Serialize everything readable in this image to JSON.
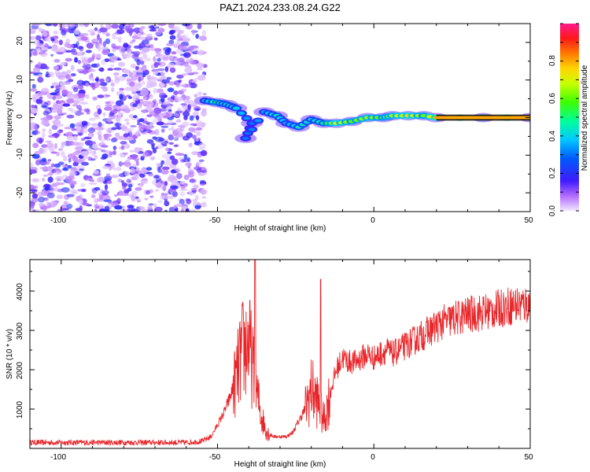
{
  "title": "PAZ1.2024.233.08.24.G22",
  "colors": {
    "snr_line": "#e8262a",
    "axis": "#000000"
  },
  "chart_data": [
    {
      "type": "heatmap",
      "title": "PAZ1.2024.233.08.24.G22",
      "xlabel": "Height of straight line (km)",
      "ylabel": "Frequency (Hz)",
      "xlim": [
        -110,
        50
      ],
      "ylim": [
        -25,
        25
      ],
      "x_ticks": [
        "-100",
        "-50",
        "0",
        "50"
      ],
      "y_ticks": [
        "-20",
        "-10",
        "0",
        "10",
        "20"
      ],
      "colorbar": {
        "label": "Normalized spectral amplitude",
        "range": [
          0,
          1
        ],
        "ticks": [
          "0.0",
          "0.2",
          "0.4",
          "0.6",
          "0.8"
        ]
      },
      "noise_region_x": [
        -110,
        -54
      ],
      "ridge": [
        {
          "x": -54,
          "y": 4.5,
          "v": 0.35
        },
        {
          "x": -50,
          "y": 4.0,
          "v": 0.55
        },
        {
          "x": -47,
          "y": 3.5,
          "v": 0.45
        },
        {
          "x": -44,
          "y": 2.5,
          "v": 0.4
        },
        {
          "x": -39,
          "y": -1.5,
          "v": 0.3
        },
        {
          "x": -41,
          "y": -5.5,
          "v": 0.3
        },
        {
          "x": -35,
          "y": 1.5,
          "v": 0.35
        },
        {
          "x": -31,
          "y": 0.5,
          "v": 0.45
        },
        {
          "x": -28,
          "y": -1.5,
          "v": 0.35
        },
        {
          "x": -24,
          "y": -2.5,
          "v": 0.45
        },
        {
          "x": -20,
          "y": -0.5,
          "v": 0.4
        },
        {
          "x": -16,
          "y": -1.5,
          "v": 0.5
        },
        {
          "x": -12,
          "y": -1.5,
          "v": 0.7
        },
        {
          "x": -7,
          "y": -1.0,
          "v": 0.6
        },
        {
          "x": -2,
          "y": 0.0,
          "v": 0.65
        },
        {
          "x": 3,
          "y": 0.0,
          "v": 0.6
        },
        {
          "x": 6,
          "y": 0.5,
          "v": 0.65
        },
        {
          "x": 11,
          "y": 0.5,
          "v": 0.75
        },
        {
          "x": 16,
          "y": 0.5,
          "v": 0.6
        },
        {
          "x": 20,
          "y": 0.0,
          "v": 0.8
        },
        {
          "x": 35,
          "y": 0.0,
          "v": 0.85
        },
        {
          "x": 50,
          "y": 0.0,
          "v": 0.85
        }
      ]
    },
    {
      "type": "line",
      "xlabel": "Height of straight line (km)",
      "ylabel": "SNR (10 * v/v)",
      "xlim": [
        -110,
        50
      ],
      "ylim": [
        0,
        4800
      ],
      "x_ticks": [
        "-100",
        "-50",
        "0",
        "50"
      ],
      "y_ticks": [
        "1000",
        "2000",
        "3000",
        "4000"
      ],
      "series": [
        {
          "x": [
            -110,
            -100,
            -90,
            -80,
            -70,
            -60,
            -55,
            -52,
            -50,
            -48,
            -46,
            -44,
            -42,
            -40,
            -38,
            -36,
            -34,
            -32,
            -30,
            -28,
            -26,
            -24,
            -22,
            -20,
            -18,
            -16,
            -14,
            -12,
            -10,
            -8,
            -6,
            -4,
            -2,
            0,
            2,
            4,
            6,
            8,
            10,
            12,
            14,
            16,
            18,
            20,
            22,
            24,
            26,
            28,
            30,
            32,
            34,
            36,
            38,
            40,
            42,
            44,
            46,
            48,
            50
          ],
          "y": [
            150,
            150,
            150,
            150,
            150,
            150,
            180,
            300,
            600,
            900,
            1300,
            1800,
            2500,
            2700,
            1700,
            800,
            400,
            300,
            300,
            300,
            400,
            700,
            1000,
            1500,
            1200,
            700,
            1400,
            2000,
            2300,
            2200,
            2200,
            2300,
            2400,
            2300,
            2400,
            2500,
            2400,
            2500,
            2600,
            2700,
            2800,
            2900,
            3000,
            3100,
            3200,
            3250,
            3300,
            3350,
            3400,
            3420,
            3450,
            3480,
            3500,
            3550,
            3600,
            3620,
            3650,
            3650,
            3650
          ]
        }
      ],
      "peaks": [
        {
          "x": -38,
          "y": 4800
        },
        {
          "x": -17,
          "y": 4300
        }
      ]
    }
  ]
}
